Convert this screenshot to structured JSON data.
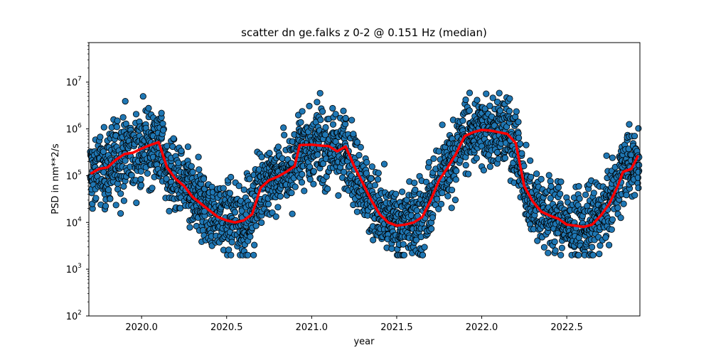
{
  "chart_data": {
    "type": "scatter",
    "title": "scatter dn ge.falks z 0-2 @ 0.151 Hz (median)",
    "xlabel": "year",
    "ylabel": "PSD in nm**2/s",
    "xlim": [
      2019.69,
      2022.93
    ],
    "ylim": [
      100,
      70000000
    ],
    "yscale": "log",
    "x_ticks": [
      2020.0,
      2020.5,
      2021.0,
      2021.5,
      2022.0,
      2022.5
    ],
    "x_tick_labels": [
      "2020.0",
      "2020.5",
      "2021.0",
      "2021.5",
      "2022.0",
      "2022.5"
    ],
    "y_ticks": [
      100,
      1000,
      10000,
      100000,
      1000000,
      10000000
    ],
    "y_tick_labels": [
      "10",
      "10",
      "10",
      "10",
      "10",
      "10"
    ],
    "y_tick_exponents": [
      "2",
      "3",
      "4",
      "5",
      "6",
      "7"
    ],
    "grid": false,
    "legend": "none",
    "series": [
      {
        "kind": "scatter",
        "color": "#1f77b4",
        "edge_color": "#000000",
        "envelope_note_free": true,
        "median_curve": [
          [
            2019.7,
            110000
          ],
          [
            2019.75,
            140000
          ],
          [
            2019.8,
            150000
          ],
          [
            2019.85,
            220000
          ],
          [
            2019.9,
            290000
          ],
          [
            2019.95,
            310000
          ],
          [
            2020.0,
            380000
          ],
          [
            2020.05,
            450000
          ],
          [
            2020.1,
            520000
          ],
          [
            2020.15,
            150000
          ],
          [
            2020.2,
            85000
          ],
          [
            2020.25,
            60000
          ],
          [
            2020.3,
            35000
          ],
          [
            2020.35,
            25000
          ],
          [
            2020.4,
            18000
          ],
          [
            2020.45,
            13000
          ],
          [
            2020.5,
            11000
          ],
          [
            2020.55,
            10000
          ],
          [
            2020.6,
            11000
          ],
          [
            2020.65,
            15000
          ],
          [
            2020.7,
            55000
          ],
          [
            2020.75,
            80000
          ],
          [
            2020.8,
            95000
          ],
          [
            2020.85,
            120000
          ],
          [
            2020.9,
            160000
          ],
          [
            2020.93,
            450000
          ],
          [
            2021.0,
            460000
          ],
          [
            2021.05,
            440000
          ],
          [
            2021.1,
            430000
          ],
          [
            2021.15,
            330000
          ],
          [
            2021.2,
            420000
          ],
          [
            2021.25,
            160000
          ],
          [
            2021.3,
            70000
          ],
          [
            2021.35,
            30000
          ],
          [
            2021.4,
            15000
          ],
          [
            2021.45,
            10000
          ],
          [
            2021.5,
            8500
          ],
          [
            2021.55,
            9000
          ],
          [
            2021.6,
            10000
          ],
          [
            2021.65,
            13000
          ],
          [
            2021.7,
            30000
          ],
          [
            2021.75,
            80000
          ],
          [
            2021.8,
            150000
          ],
          [
            2021.85,
            300000
          ],
          [
            2021.9,
            700000
          ],
          [
            2021.95,
            850000
          ],
          [
            2022.0,
            950000
          ],
          [
            2022.05,
            920000
          ],
          [
            2022.1,
            850000
          ],
          [
            2022.15,
            780000
          ],
          [
            2022.2,
            500000
          ],
          [
            2022.25,
            60000
          ],
          [
            2022.3,
            28000
          ],
          [
            2022.35,
            17000
          ],
          [
            2022.4,
            14000
          ],
          [
            2022.45,
            12000
          ],
          [
            2022.5,
            9000
          ],
          [
            2022.55,
            8500
          ],
          [
            2022.6,
            8000
          ],
          [
            2022.65,
            9000
          ],
          [
            2022.7,
            14000
          ],
          [
            2022.75,
            25000
          ],
          [
            2022.8,
            60000
          ],
          [
            2022.83,
            120000
          ],
          [
            2022.88,
            140000
          ],
          [
            2022.92,
            270000
          ]
        ]
      },
      {
        "kind": "line",
        "color": "#ff0000",
        "points_ref": "median_curve"
      }
    ]
  }
}
